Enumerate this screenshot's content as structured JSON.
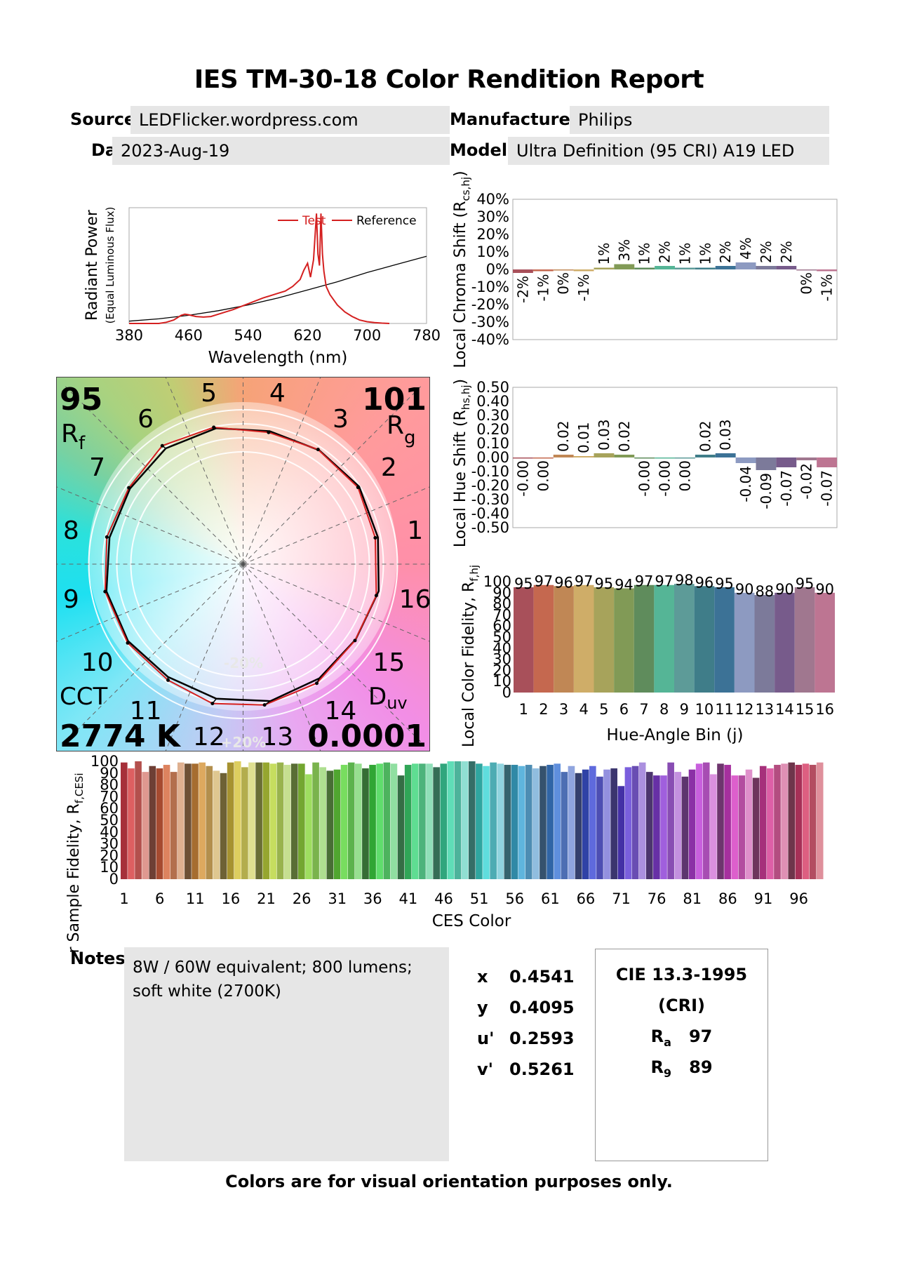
{
  "title": "IES TM-30-18 Color Rendition Report",
  "header": {
    "source_label": "Source:",
    "source": "LEDFlicker.wordpress.com",
    "manufacturer_label": "Manufacturer:",
    "manufacturer": "Philips",
    "date_label": "Date:",
    "date": "2023-Aug-19",
    "model_label": "Model:",
    "model": "Ultra Definition (95 CRI) A19 LED"
  },
  "vector_graphic": {
    "rf": "95",
    "rf_label": "R",
    "rf_sub": "f",
    "rg": "101",
    "rg_label": "R",
    "rg_sub": "g",
    "cct_label": "CCT",
    "cct": "2774 K",
    "duv_label": "D",
    "duv_sub": "uv",
    "duv": "0.0001",
    "bin_labels": [
      "1",
      "2",
      "3",
      "4",
      "5",
      "6",
      "7",
      "8",
      "9",
      "10",
      "11",
      "12",
      "13",
      "14",
      "15",
      "16"
    ],
    "ring_labels": [
      "-20%",
      "+20%"
    ],
    "legend_colors": {
      "test": "#d42020",
      "reference": "#000000"
    }
  },
  "notes": {
    "label": "Notes:",
    "text": "8W / 60W equivalent; 800 lumens; soft white (2700K)"
  },
  "coordinates": [
    {
      "k": "x",
      "v": "0.4541"
    },
    {
      "k": "y",
      "v": "0.4095"
    },
    {
      "k": "u'",
      "v": "0.2593"
    },
    {
      "k": "v'",
      "v": "0.5261"
    }
  ],
  "cri": {
    "title1": "CIE 13.3-1995",
    "title2": "(CRI)",
    "ra_label": "R",
    "ra_sub": "a",
    "ra": "97",
    "r9_label": "R",
    "r9_sub": "9",
    "r9": "89"
  },
  "footer": "Colors are for visual orientation purposes only.",
  "chart_data": [
    {
      "type": "line",
      "id": "spd",
      "ylabel": "Radiant Power",
      "ylabel2": "(Equal Luminous Flux)",
      "xlabel": "Wavelength (nm)",
      "xlim": [
        380,
        780
      ],
      "xticks": [
        380,
        460,
        540,
        620,
        700,
        780
      ],
      "legend": [
        "Test",
        "Reference"
      ],
      "legend_position": "top-right",
      "series": [
        {
          "name": "Test",
          "color": "#d42020",
          "x": [
            380,
            400,
            420,
            430,
            440,
            450,
            455,
            460,
            470,
            480,
            490,
            500,
            520,
            540,
            560,
            580,
            590,
            600,
            610,
            615,
            620,
            624,
            628,
            632,
            634,
            636,
            638,
            640,
            642,
            645,
            650,
            660,
            670,
            680,
            690,
            700,
            710,
            720,
            730
          ],
          "y": [
            0,
            0,
            0,
            0.01,
            0.03,
            0.07,
            0.08,
            0.075,
            0.06,
            0.055,
            0.06,
            0.08,
            0.12,
            0.17,
            0.22,
            0.26,
            0.28,
            0.32,
            0.38,
            0.46,
            0.52,
            0.4,
            0.55,
            0.95,
            0.6,
            0.5,
            0.95,
            0.6,
            0.45,
            0.32,
            0.25,
            0.16,
            0.1,
            0.06,
            0.03,
            0.015,
            0.008,
            0.003,
            0
          ]
        },
        {
          "name": "Reference",
          "color": "#000000",
          "x": [
            380,
            420,
            460,
            500,
            540,
            580,
            620,
            660,
            700,
            740,
            780
          ],
          "y": [
            0.02,
            0.04,
            0.07,
            0.11,
            0.16,
            0.22,
            0.29,
            0.36,
            0.44,
            0.51,
            0.58
          ]
        }
      ]
    },
    {
      "type": "bar",
      "id": "chroma",
      "ylabel": "Local Chroma Shift (R",
      "ylabel_sub": "cs,hj",
      "ylabel_end": ")",
      "ylim": [
        -40,
        40
      ],
      "yticks": [
        "40%",
        "30%",
        "20%",
        "10%",
        "0%",
        "-10%",
        "-20%",
        "-30%",
        "-40%"
      ],
      "categories": [
        "1",
        "2",
        "3",
        "4",
        "5",
        "6",
        "7",
        "8",
        "9",
        "10",
        "11",
        "12",
        "13",
        "14",
        "15",
        "16"
      ],
      "values": [
        -2,
        -1,
        0,
        -1,
        1,
        3,
        1,
        2,
        1,
        1,
        2,
        4,
        2,
        2,
        0,
        -1
      ],
      "labels": [
        "-2%",
        "-1%",
        "0%",
        "-1%",
        "1%",
        "3%",
        "1%",
        "2%",
        "1%",
        "1%",
        "2%",
        "4%",
        "2%",
        "2%",
        "0%",
        "-1%"
      ]
    },
    {
      "type": "bar",
      "id": "hue",
      "ylabel": "Local Hue Shift (R",
      "ylabel_sub": "hs,hj",
      "ylabel_end": ")",
      "ylim": [
        -0.5,
        0.5
      ],
      "yticks": [
        "0.50",
        "0.40",
        "0.30",
        "0.20",
        "0.10",
        "0.00",
        "-0.10",
        "-0.20",
        "-0.30",
        "-0.40",
        "-0.50"
      ],
      "categories": [
        "1",
        "2",
        "3",
        "4",
        "5",
        "6",
        "7",
        "8",
        "9",
        "10",
        "11",
        "12",
        "13",
        "14",
        "15",
        "16"
      ],
      "values": [
        -0.0,
        0.0,
        0.02,
        0.01,
        0.03,
        0.02,
        -0.0,
        -0.0,
        0.0,
        0.02,
        0.03,
        -0.04,
        -0.09,
        -0.07,
        -0.02,
        -0.07
      ],
      "labels": [
        "-0.00",
        "0.00",
        "0.02",
        "0.01",
        "0.03",
        "0.02",
        "-0.00",
        "-0.00",
        "0.00",
        "0.02",
        "0.03",
        "-0.04",
        "-0.09",
        "-0.07",
        "-0.02",
        "-0.07"
      ]
    },
    {
      "type": "bar",
      "id": "fidelity",
      "ylabel": "Local Color Fidelity, R",
      "ylabel_sub": "f,hj",
      "xlabel": "Hue-Angle Bin (j)",
      "ylim": [
        0,
        100
      ],
      "yticks": [
        "100",
        "90",
        "80",
        "70",
        "60",
        "50",
        "40",
        "30",
        "20",
        "10",
        "0"
      ],
      "categories": [
        "1",
        "2",
        "3",
        "4",
        "5",
        "6",
        "7",
        "8",
        "9",
        "10",
        "11",
        "12",
        "13",
        "14",
        "15",
        "16"
      ],
      "values": [
        95,
        97,
        96,
        97,
        95,
        94,
        97,
        97,
        98,
        96,
        95,
        90,
        88,
        90,
        95,
        90
      ],
      "labels": [
        "95",
        "97",
        "96",
        "97",
        "95",
        "94",
        "97",
        "97",
        "98",
        "96",
        "95",
        "90",
        "88",
        "90",
        "95",
        "90"
      ]
    },
    {
      "type": "bar",
      "id": "ces",
      "ylabel": "r Sample Fidelity, R",
      "ylabel_sub": "f,CESi",
      "xlabel": "CES Color",
      "ylim": [
        0,
        100
      ],
      "yticks": [
        "100",
        "90",
        "80",
        "70",
        "60",
        "50",
        "40",
        "30",
        "20",
        "10",
        "0"
      ],
      "xticks": [
        "1",
        "6",
        "11",
        "16",
        "21",
        "26",
        "31",
        "36",
        "41",
        "46",
        "51",
        "56",
        "61",
        "66",
        "71",
        "76",
        "81",
        "86",
        "91",
        "96"
      ],
      "values": [
        99,
        94,
        100,
        91,
        96,
        94,
        97,
        91,
        99,
        98,
        98,
        99,
        96,
        92,
        90,
        99,
        100,
        95,
        99,
        99,
        99,
        98,
        99,
        97,
        98,
        98,
        89,
        99,
        95,
        92,
        93,
        97,
        99,
        98,
        94,
        97,
        98,
        99,
        98,
        88,
        97,
        98,
        98,
        98,
        95,
        98,
        100,
        100,
        100,
        100,
        98,
        96,
        99,
        98,
        97,
        97,
        96,
        97,
        94,
        96,
        97,
        98,
        91,
        96,
        90,
        93,
        96,
        87,
        93,
        94,
        79,
        95,
        96,
        99,
        91,
        88,
        88,
        99,
        91,
        87,
        93,
        98,
        99,
        89,
        98,
        97,
        88,
        88,
        93,
        86,
        96,
        94,
        97,
        98,
        99,
        97,
        98,
        97,
        99
      ]
    }
  ]
}
